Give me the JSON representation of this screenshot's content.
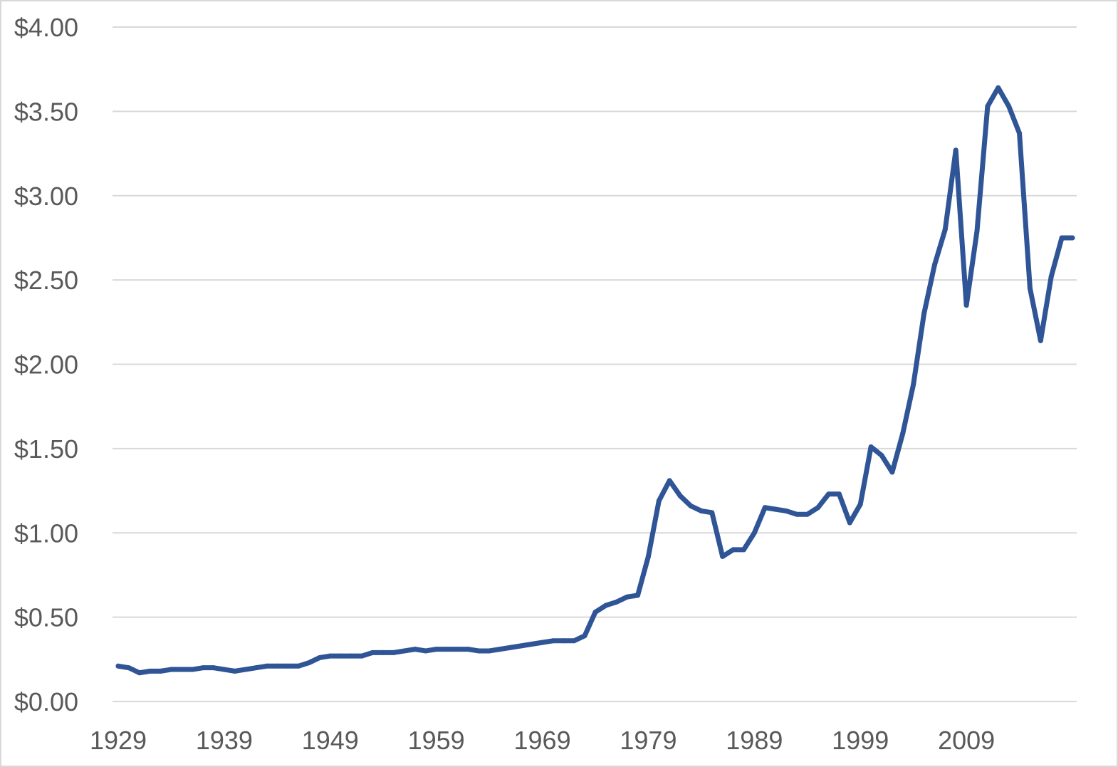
{
  "chart_data": {
    "type": "line",
    "title": "",
    "xlabel": "",
    "ylabel": "",
    "x_tick_labels": [
      "1929",
      "1939",
      "1949",
      "1959",
      "1969",
      "1979",
      "1989",
      "1999",
      "2009"
    ],
    "y_tick_labels": [
      "$0.00",
      "$0.50",
      "$1.00",
      "$1.50",
      "$2.00",
      "$2.50",
      "$3.00",
      "$3.50",
      "$4.00"
    ],
    "y_ticks": [
      0,
      0.5,
      1.0,
      1.5,
      2.0,
      2.5,
      3.0,
      3.5,
      4.0
    ],
    "ylim": [
      0,
      4.0
    ],
    "xlim": [
      1929,
      2019
    ],
    "grid": true,
    "legend": "none",
    "series": [
      {
        "color": "#2f5597",
        "x": [
          1929,
          1930,
          1931,
          1932,
          1933,
          1934,
          1935,
          1936,
          1937,
          1938,
          1939,
          1940,
          1941,
          1942,
          1943,
          1944,
          1945,
          1946,
          1947,
          1948,
          1949,
          1950,
          1951,
          1952,
          1953,
          1954,
          1955,
          1956,
          1957,
          1958,
          1959,
          1960,
          1961,
          1962,
          1963,
          1964,
          1965,
          1966,
          1967,
          1968,
          1969,
          1970,
          1971,
          1972,
          1973,
          1974,
          1975,
          1976,
          1977,
          1978,
          1979,
          1980,
          1981,
          1982,
          1983,
          1984,
          1985,
          1986,
          1987,
          1988,
          1989,
          1990,
          1991,
          1992,
          1993,
          1994,
          1995,
          1996,
          1997,
          1998,
          1999,
          2000,
          2001,
          2002,
          2003,
          2004,
          2005,
          2006,
          2007,
          2008,
          2009,
          2010,
          2011,
          2012,
          2013,
          2014,
          2015,
          2016,
          2017,
          2018,
          2019
        ],
        "y": [
          0.21,
          0.2,
          0.17,
          0.18,
          0.18,
          0.19,
          0.19,
          0.19,
          0.2,
          0.2,
          0.19,
          0.18,
          0.19,
          0.2,
          0.21,
          0.21,
          0.21,
          0.21,
          0.23,
          0.26,
          0.27,
          0.27,
          0.27,
          0.27,
          0.29,
          0.29,
          0.29,
          0.3,
          0.31,
          0.3,
          0.31,
          0.31,
          0.31,
          0.31,
          0.3,
          0.3,
          0.31,
          0.32,
          0.33,
          0.34,
          0.35,
          0.36,
          0.36,
          0.36,
          0.39,
          0.53,
          0.57,
          0.59,
          0.62,
          0.63,
          0.86,
          1.19,
          1.31,
          1.22,
          1.16,
          1.13,
          1.12,
          0.86,
          0.9,
          0.9,
          1.0,
          1.15,
          1.14,
          1.13,
          1.11,
          1.11,
          1.15,
          1.23,
          1.23,
          1.06,
          1.17,
          1.51,
          1.46,
          1.36,
          1.59,
          1.88,
          2.3,
          2.59,
          2.8,
          3.27,
          2.35,
          2.79,
          3.53,
          3.64,
          3.53,
          3.37,
          2.45,
          2.14,
          2.52,
          2.75,
          2.75
        ]
      }
    ]
  }
}
